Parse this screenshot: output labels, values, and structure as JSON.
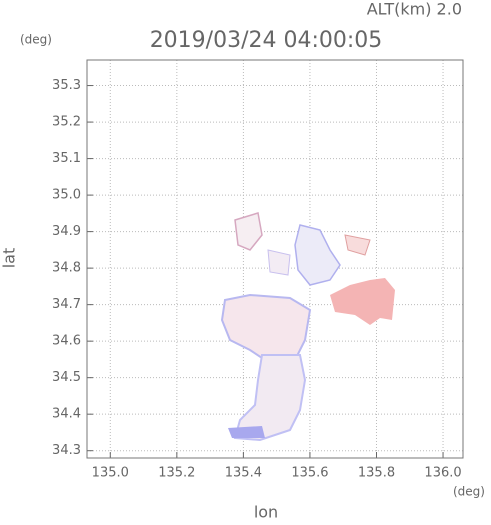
{
  "chart_data": {
    "type": "map",
    "title": "2019/03/24 04:00:05",
    "subtitle": "ALT(km) 2.0",
    "y_unit": "(deg)",
    "x_unit": "(deg)",
    "xlabel": "lon",
    "ylabel": "lat",
    "xlim": [
      134.93,
      136.06
    ],
    "ylim": [
      34.28,
      35.37
    ],
    "xticks": [
      {
        "value": 135,
        "label": "135.0"
      },
      135.2,
      135.4,
      135.6,
      135.8,
      {
        "value": 136,
        "label": "136.0"
      }
    ],
    "yticks": [
      34.3,
      34.4,
      34.5,
      34.6,
      34.7,
      34.8,
      34.9,
      {
        "value": 35,
        "label": "35.0"
      },
      35.1,
      35.2,
      35.3
    ],
    "grid": true
  }
}
